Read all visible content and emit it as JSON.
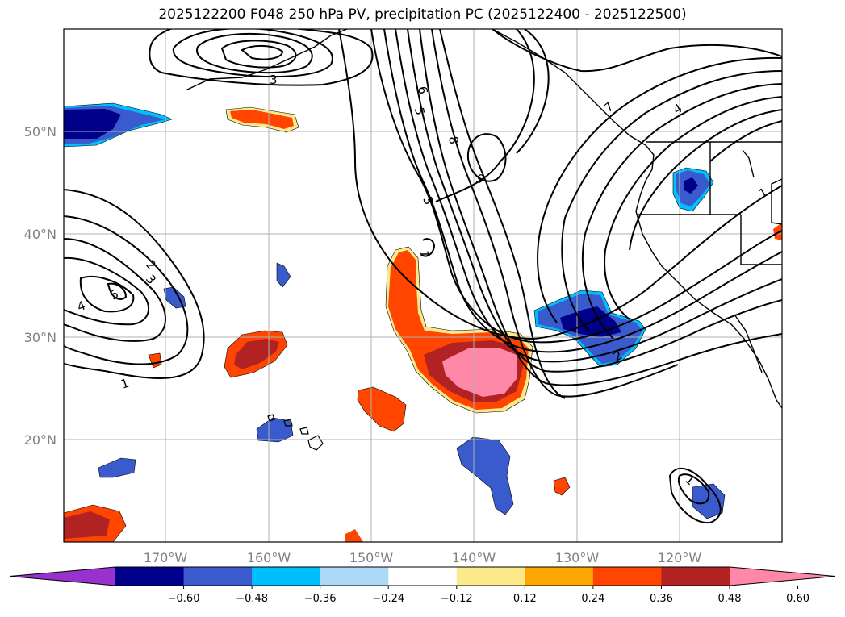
{
  "title": "2025122200 F048 250 hPa PV, precipitation PC (2025122400 - 2025122500)",
  "map": {
    "lon_ticks": [
      "170°W",
      "160°W",
      "150°W",
      "140°W",
      "130°W",
      "120°W"
    ],
    "lat_ticks": [
      "50°N",
      "40°N",
      "30°N",
      "20°N"
    ],
    "lon_range": [
      -180,
      -110
    ],
    "lat_range": [
      10,
      60
    ],
    "gridlines": true,
    "coastline_color": "#000000",
    "pv_contour_color": "#000000",
    "pv_contour_labels": [
      "3",
      "6",
      "5",
      "8",
      "9",
      "3",
      "1",
      "7",
      "4",
      "1",
      "2",
      "3",
      "4",
      "5",
      "1",
      "2",
      "1"
    ]
  },
  "colorbar": {
    "ticks": [
      "−0.60",
      "−0.48",
      "−0.36",
      "−0.24",
      "−0.12",
      "0.12",
      "0.24",
      "0.36",
      "0.48",
      "0.60"
    ],
    "colors": [
      "#9932cc",
      "#00008b",
      "#3a5bcd",
      "#00bfff",
      "#add8f7",
      "#ffffff",
      "#fcea8a",
      "#ffa500",
      "#ff4500",
      "#b22222",
      "#ff88a8"
    ],
    "extend": "both"
  }
}
